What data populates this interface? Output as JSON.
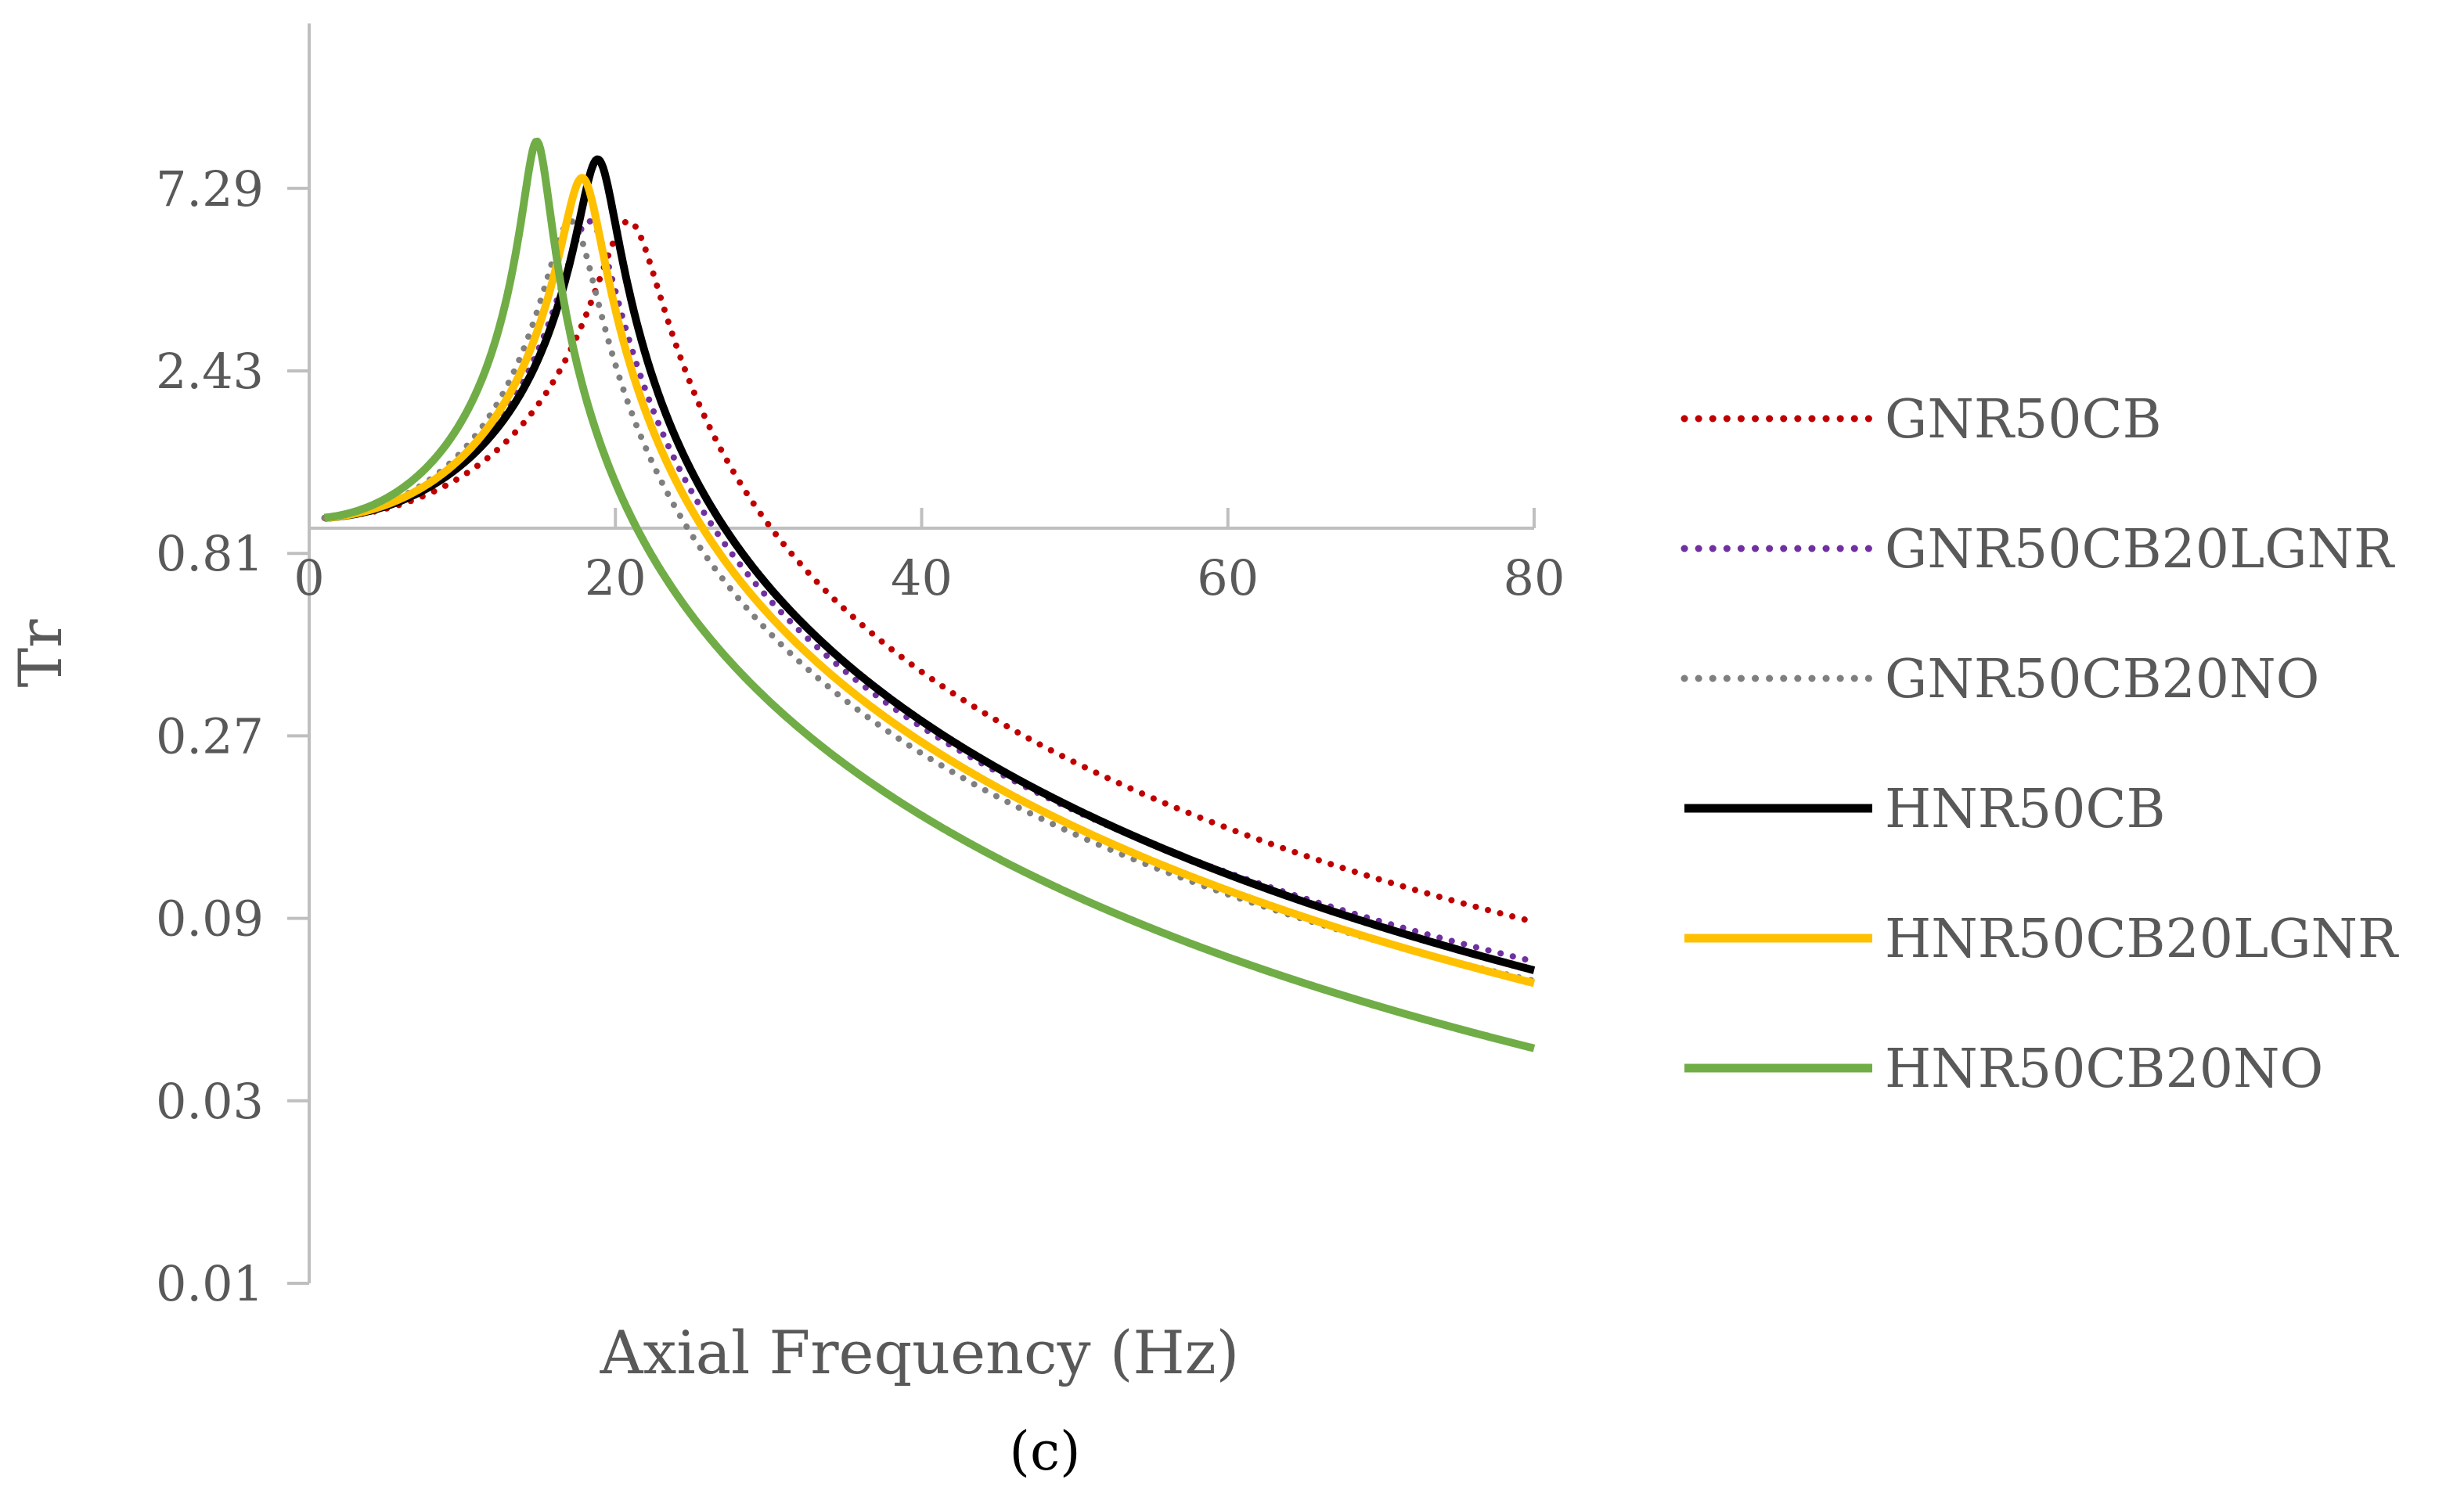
{
  "chart_data": {
    "type": "line",
    "title": "",
    "caption": "(c)",
    "xlabel": "Axial Frequency (Hz)",
    "ylabel": "Tr",
    "xlim": [
      0,
      80
    ],
    "x_ticks": [
      "0",
      "20",
      "40",
      "60",
      "80"
    ],
    "y_scale": "log3",
    "y_ticks": [
      "7.29",
      "2.43",
      "0.81",
      "0.27",
      "0.09",
      "0.03",
      "0.01"
    ],
    "y_tick_values": [
      7.29,
      2.43,
      0.81,
      0.27,
      0.09,
      0.03,
      0.01
    ],
    "ylim": [
      0.01,
      19.68
    ],
    "grid": false,
    "legend_position": "right",
    "series": [
      {
        "name": "GNR50CB",
        "color": "#C00000",
        "style": "dotted",
        "fn": 21.0,
        "zeta": 0.085
      },
      {
        "name": "GNR50CB20LGNR",
        "color": "#7030A0",
        "style": "dotted",
        "fn": 18.4,
        "zeta": 0.085
      },
      {
        "name": "GNR50CB20NO",
        "color": "#7F7F7F",
        "style": "dotted",
        "fn": 17.2,
        "zeta": 0.085
      },
      {
        "name": "HNR50CB",
        "color": "#000000",
        "style": "solid",
        "fn": 18.9,
        "zeta": 0.058
      },
      {
        "name": "HNR50CB20LGNR",
        "color": "#FFC000",
        "style": "solid",
        "fn": 17.9,
        "zeta": 0.065
      },
      {
        "name": "HNR50CB20NO",
        "color": "#70AD47",
        "style": "solid",
        "fn": 14.9,
        "zeta": 0.052
      }
    ]
  }
}
